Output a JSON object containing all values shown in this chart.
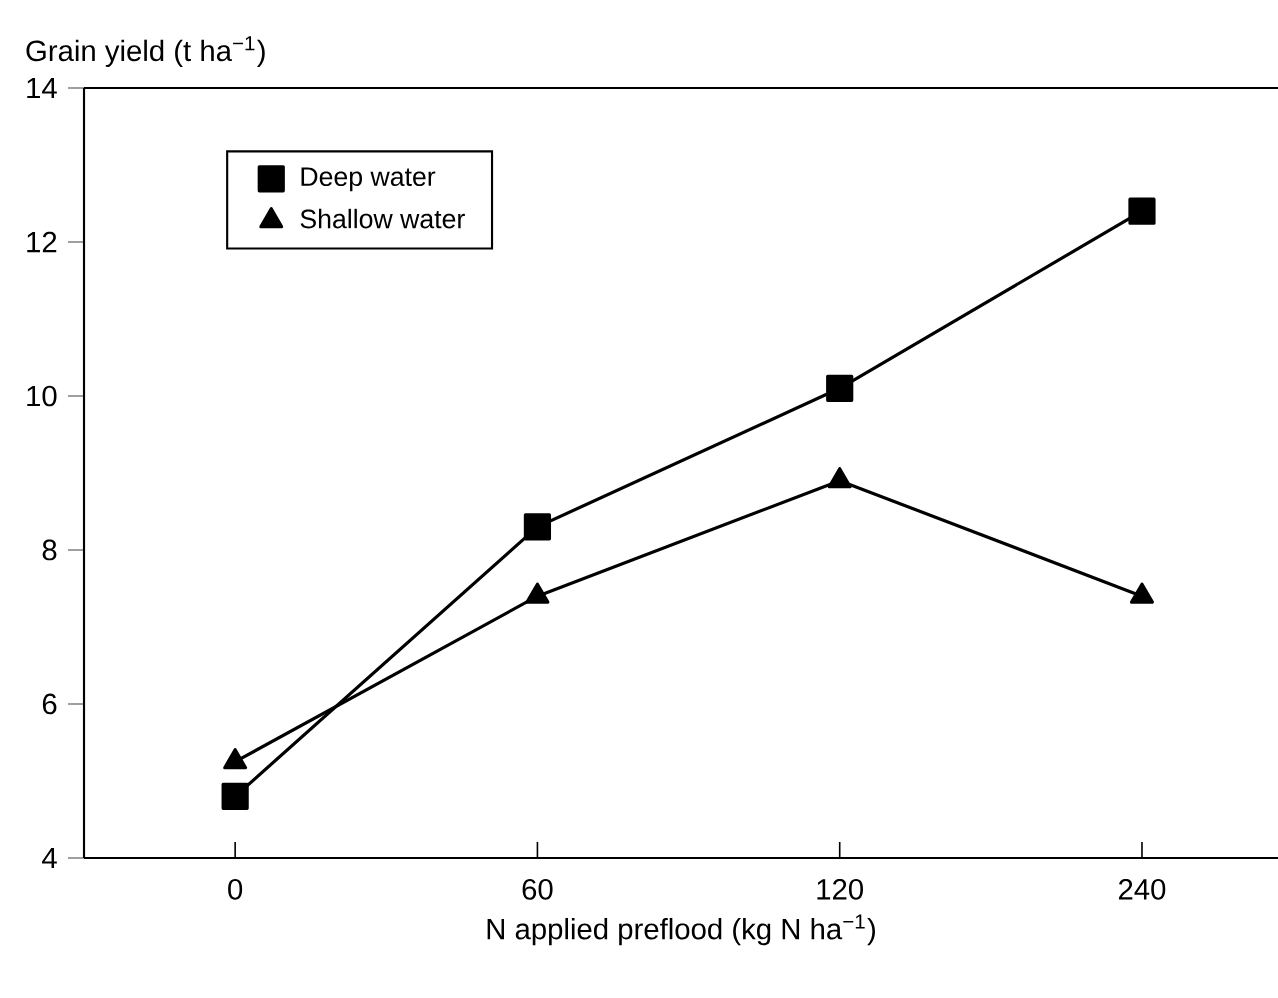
{
  "chart_data": {
    "type": "line",
    "xlabel": "N applied preflood (kg N ha$^{−1}$)",
    "ylabel": "Grain yield (t ha$^{−1}$)",
    "categories": [
      "0",
      "60",
      "120",
      "240"
    ],
    "series": [
      {
        "name": "Deep water",
        "color": "#000000",
        "marker": "square",
        "values": [
          4.8,
          8.3,
          10.1,
          12.4
        ]
      },
      {
        "name": "Shallow water",
        "color": "#000000",
        "marker": "triangle",
        "values": [
          5.25,
          7.4,
          8.9,
          7.4
        ]
      }
    ],
    "ylim": [
      4,
      14
    ],
    "yticks": [
      4,
      6,
      8,
      10,
      12,
      14
    ],
    "legend": "top left",
    "grid": false,
    "line_style": "solid"
  }
}
